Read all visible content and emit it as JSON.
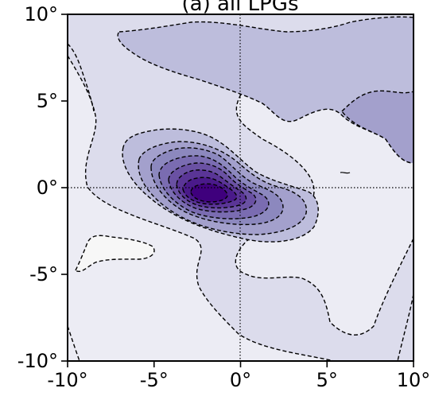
{
  "chart_data": {
    "type": "contour",
    "title": "(a) all LPGs",
    "xlabel": "",
    "ylabel": "",
    "xlim": [
      -10,
      10
    ],
    "ylim": [
      -10,
      10
    ],
    "x_ticks": [
      -10,
      -5,
      0,
      5,
      10
    ],
    "y_ticks": [
      -10,
      -5,
      0,
      5,
      10
    ],
    "x_tick_labels": [
      "-10°",
      "-5°",
      "0°",
      "5°",
      "10°"
    ],
    "y_tick_labels": [
      "-10°",
      "-5°",
      "0°",
      "5°",
      "10°"
    ],
    "reference_lines": {
      "x": 0,
      "y": 0,
      "style": "dotted"
    },
    "contour_line_style": "dashed",
    "colormap": "Purples",
    "field_peak": {
      "x": -1.4,
      "y": -0.6
    },
    "colors": {
      "background": "#ececf4",
      "low_region": "#f7f7f7",
      "level_1": "#dcdcec",
      "level_2": "#bdbddc",
      "level_3": "#a3a0cc",
      "level_4": "#8c88be",
      "level_5": "#7a6cb1",
      "level_6": "#6a51a3",
      "level_7": "#5a3596",
      "level_8": "#4a1a8a",
      "level_9": "#3f007d"
    }
  }
}
